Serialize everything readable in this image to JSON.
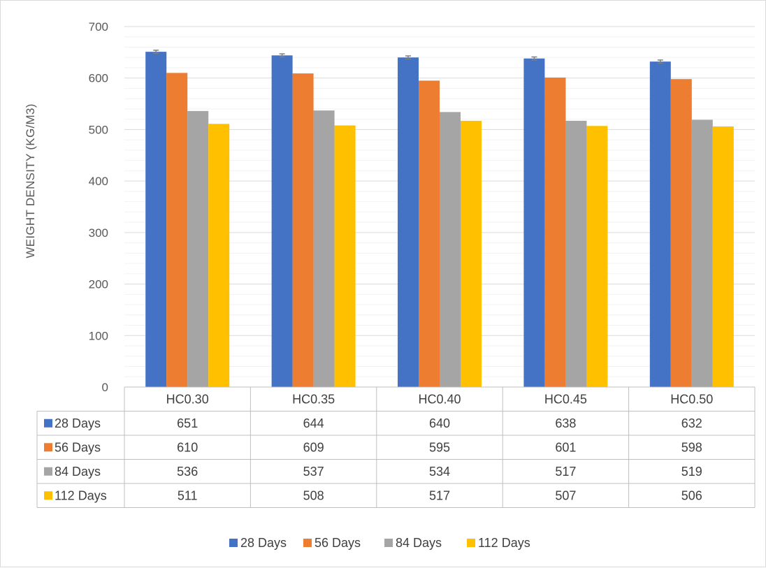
{
  "chart_data": {
    "type": "bar",
    "title": "",
    "xlabel": "",
    "ylabel": "WEIGHT DENSITY (KG/M3)",
    "ylim": [
      0,
      700
    ],
    "yticks": [
      0,
      100,
      200,
      300,
      400,
      500,
      600,
      700
    ],
    "categories": [
      "HC0.30",
      "HC0.35",
      "HC0.40",
      "HC0.45",
      "HC0.50"
    ],
    "series": [
      {
        "name": "28 Days",
        "color": "#4472C4",
        "values": [
          651,
          644,
          640,
          638,
          632
        ],
        "error_bars": true
      },
      {
        "name": "56 Days",
        "color": "#ED7D31",
        "values": [
          610,
          609,
          595,
          601,
          598
        ],
        "error_bars": false
      },
      {
        "name": "84 Days",
        "color": "#A5A5A5",
        "values": [
          536,
          537,
          534,
          517,
          519
        ],
        "error_bars": false
      },
      {
        "name": "112 Days",
        "color": "#FFC000",
        "values": [
          511,
          508,
          517,
          507,
          506
        ],
        "error_bars": false
      }
    ],
    "grid": {
      "major": true,
      "minor": true
    },
    "data_table": true,
    "legend_position": "bottom"
  }
}
